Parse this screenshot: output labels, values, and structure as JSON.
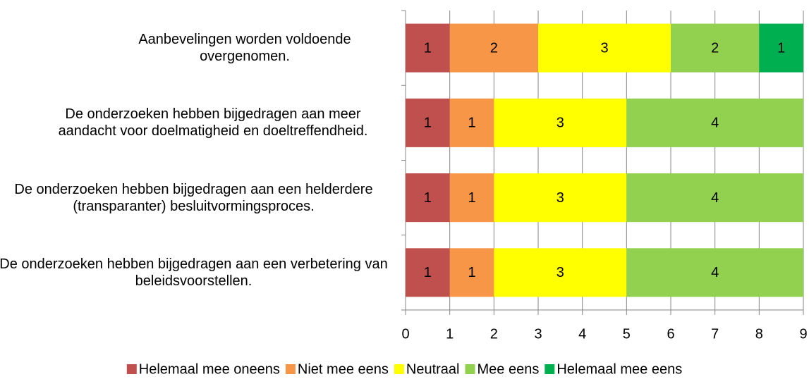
{
  "chart_data": {
    "type": "stacked_barh",
    "categories": [
      "Aanbevelingen worden voldoende overgenomen.",
      "De onderzoeken hebben bijgedragen aan meer aandacht voor doelmatigheid en doeltreffendheid.",
      "De onderzoeken hebben bijgedragen aan een helderdere (transparanter) besluitvormingsproces.",
      "De onderzoeken hebben bijgedragen aan een verbetering van beleidsvoorstellen."
    ],
    "series": [
      {
        "name": "Helemaal mee oneens",
        "color": "#c0504d",
        "values": [
          1,
          1,
          1,
          1
        ]
      },
      {
        "name": "Niet mee eens",
        "color": "#f79646",
        "values": [
          2,
          1,
          1,
          1
        ]
      },
      {
        "name": "Neutraal",
        "color": "#ffff00",
        "values": [
          3,
          3,
          3,
          3
        ]
      },
      {
        "name": "Mee eens",
        "color": "#92d050",
        "values": [
          2,
          4,
          4,
          4
        ]
      },
      {
        "name": "Helemaal mee eens",
        "color": "#00b050",
        "values": [
          1,
          0,
          0,
          0
        ]
      }
    ],
    "xlim": [
      0,
      9
    ],
    "xticks": [
      0,
      1,
      2,
      3,
      4,
      5,
      6,
      7,
      8,
      9
    ],
    "grid": true,
    "legend": "bottom"
  }
}
